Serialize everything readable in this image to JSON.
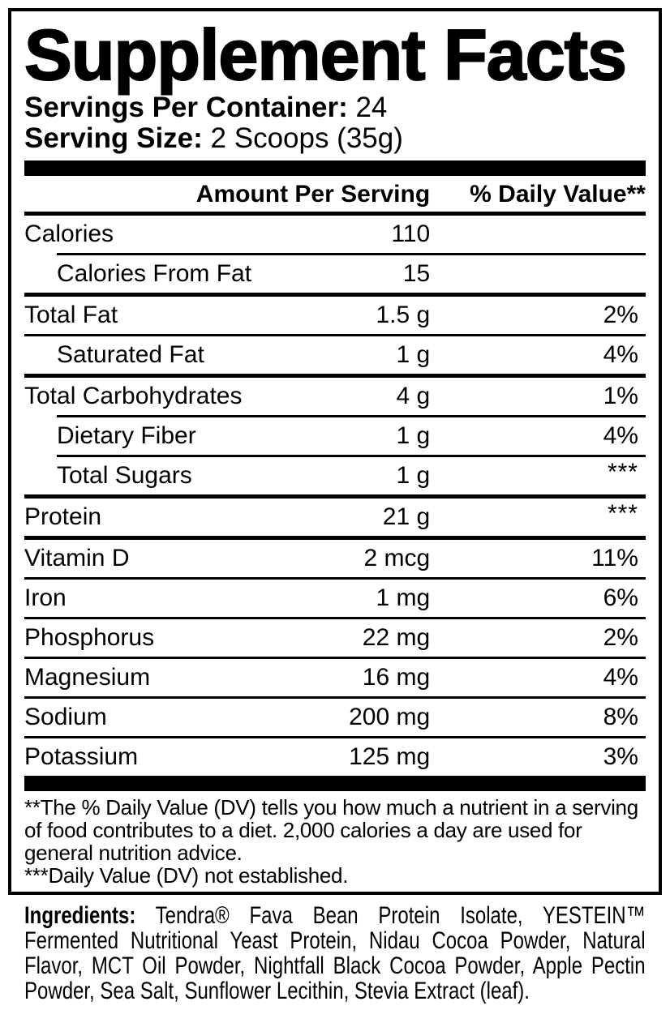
{
  "label": {
    "title": "Supplement Facts",
    "servings": {
      "per_container_label": "Servings Per Container:",
      "per_container_value": "24",
      "size_label": "Serving Size:",
      "size_value": "2 Scoops (35g)"
    },
    "table": {
      "amount_header": "Amount Per Serving",
      "dv_header": "% Daily Value**",
      "rows": [
        {
          "name": "Calories",
          "amount": "110",
          "dv": "",
          "indent": false
        },
        {
          "name": "Calories From Fat",
          "amount": "15",
          "dv": "",
          "indent": true
        },
        {
          "name": "Total Fat",
          "amount": "1.5 g",
          "dv": "2%",
          "indent": false
        },
        {
          "name": "Saturated Fat",
          "amount": "1 g",
          "dv": "4%",
          "indent": true
        },
        {
          "name": "Total Carbohydrates",
          "amount": "4 g",
          "dv": "1%",
          "indent": false
        },
        {
          "name": "Dietary Fiber",
          "amount": "1 g",
          "dv": "4%",
          "indent": true
        },
        {
          "name": "Total Sugars",
          "amount": "1 g",
          "dv": "***",
          "indent": true
        },
        {
          "name": "Protein",
          "amount": "21 g",
          "dv": "***",
          "indent": false
        },
        {
          "name": "Vitamin D",
          "amount": "2 mcg",
          "dv": "11%",
          "indent": false
        },
        {
          "name": "Iron",
          "amount": "1 mg",
          "dv": "6%",
          "indent": false
        },
        {
          "name": "Phosphorus",
          "amount": "22 mg",
          "dv": "2%",
          "indent": false
        },
        {
          "name": "Magnesium",
          "amount": "16 mg",
          "dv": "4%",
          "indent": false
        },
        {
          "name": "Sodium",
          "amount": "200 mg",
          "dv": "8%",
          "indent": false
        },
        {
          "name": "Potassium",
          "amount": "125 mg",
          "dv": "3%",
          "indent": false
        }
      ]
    },
    "footnotes": {
      "daily_value": "**The % Daily Value (DV) tells you how much a nutrient in a serving of food contributes to a diet. 2,000 calories a day are used for general nutrition advice.",
      "not_established": "***Daily Value (DV) not established."
    },
    "ingredients": {
      "label": "Ingredients:",
      "text": "Tendra® Fava Bean Protein Isolate, YESTEIN™ Fermented Nutritional Yeast Protein, Nidau Cocoa Powder, Natural Flavor, MCT Oil Powder, Nightfall Black Cocoa Powder, Apple Pectin Powder, Sea Salt, Sunflower Lecithin, Stevia Extract (leaf)."
    },
    "colors": {
      "ink": "#000000",
      "background": "#ffffff"
    }
  }
}
